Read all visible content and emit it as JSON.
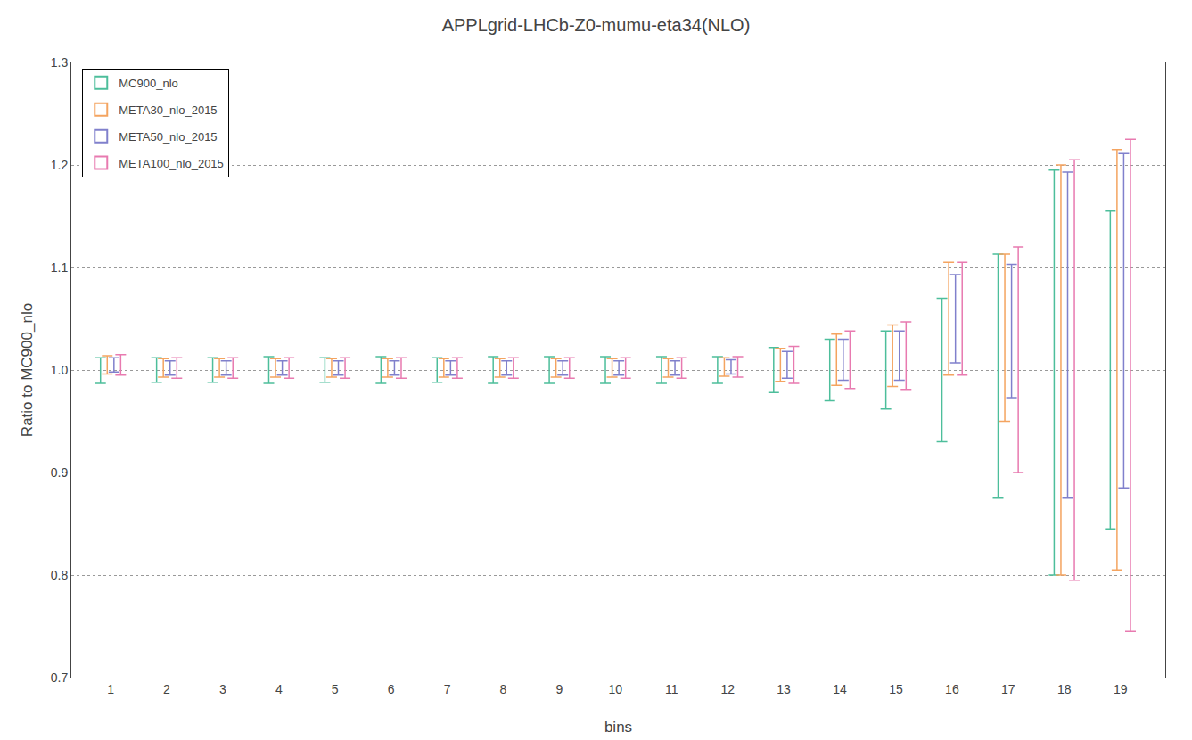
{
  "chart_data": {
    "type": "errorbar",
    "title": "APPLgrid-LHCb-Z0-mumu-eta34(NLO)",
    "xlabel": "bins",
    "ylabel": "Ratio to MC900_nlo",
    "x": [
      1,
      2,
      3,
      4,
      5,
      6,
      7,
      8,
      9,
      10,
      11,
      12,
      13,
      14,
      15,
      16,
      17,
      18,
      19
    ],
    "xlim": [
      0.3,
      19.8
    ],
    "xticks": [
      1,
      2,
      3,
      4,
      5,
      6,
      7,
      8,
      9,
      10,
      11,
      12,
      13,
      14,
      15,
      16,
      17,
      18,
      19
    ],
    "ylim": [
      0.7,
      1.3
    ],
    "yticks": [
      0.7,
      0.8,
      0.9,
      {
        "value": 1.0,
        "label": "1.0"
      },
      1.1,
      1.2,
      1.3
    ],
    "grid": true,
    "legend": "upper left",
    "series": [
      {
        "name": "MC900_nlo",
        "color": "#4dbe9b",
        "values": [
          1.0,
          1.0,
          1.0,
          1.0,
          1.0,
          1.0,
          1.0,
          1.0,
          1.0,
          1.0,
          1.0,
          1.0,
          1.0,
          1.0,
          1.0,
          1.0,
          1.0,
          1.0,
          1.0
        ],
        "err_up": [
          0.012,
          0.012,
          0.012,
          0.013,
          0.012,
          0.013,
          0.012,
          0.013,
          0.013,
          0.013,
          0.013,
          0.013,
          0.022,
          0.03,
          0.038,
          0.07,
          0.113,
          0.195,
          0.155
        ],
        "err_dn": [
          0.013,
          0.012,
          0.012,
          0.013,
          0.012,
          0.013,
          0.012,
          0.013,
          0.013,
          0.013,
          0.013,
          0.013,
          0.022,
          0.03,
          0.038,
          0.07,
          0.125,
          0.2,
          0.155
        ]
      },
      {
        "name": "META30_nlo_2015",
        "color": "#f4a460",
        "values": [
          1.005,
          1.002,
          1.002,
          1.002,
          1.002,
          1.002,
          1.002,
          1.002,
          1.002,
          1.002,
          1.002,
          1.003,
          1.005,
          1.01,
          1.014,
          1.05,
          1.065,
          1.165,
          1.195
        ],
        "err_up": [
          0.009,
          0.009,
          0.009,
          0.009,
          0.009,
          0.009,
          0.009,
          0.009,
          0.009,
          0.009,
          0.009,
          0.009,
          0.016,
          0.025,
          0.03,
          0.055,
          0.048,
          0.035,
          0.02
        ],
        "err_dn": [
          0.009,
          0.009,
          0.009,
          0.009,
          0.009,
          0.009,
          0.009,
          0.009,
          0.009,
          0.009,
          0.009,
          0.009,
          0.016,
          0.025,
          0.03,
          0.055,
          0.115,
          0.365,
          0.39
        ]
      },
      {
        "name": "META50_nlo_2015",
        "color": "#8080cc",
        "values": [
          1.005,
          1.002,
          1.002,
          1.002,
          1.002,
          1.002,
          1.002,
          1.002,
          1.002,
          1.002,
          1.002,
          1.003,
          1.005,
          1.01,
          1.014,
          1.05,
          1.065,
          1.165,
          1.195
        ],
        "err_up": [
          0.007,
          0.007,
          0.007,
          0.007,
          0.007,
          0.007,
          0.007,
          0.007,
          0.007,
          0.007,
          0.007,
          0.007,
          0.013,
          0.02,
          0.024,
          0.043,
          0.038,
          0.028,
          0.016
        ],
        "err_dn": [
          0.007,
          0.007,
          0.007,
          0.007,
          0.007,
          0.007,
          0.007,
          0.007,
          0.007,
          0.007,
          0.007,
          0.007,
          0.013,
          0.02,
          0.024,
          0.043,
          0.092,
          0.29,
          0.31
        ]
      },
      {
        "name": "META100_nlo_2015",
        "color": "#e87ab0",
        "values": [
          1.005,
          1.002,
          1.002,
          1.002,
          1.002,
          1.002,
          1.002,
          1.002,
          1.002,
          1.002,
          1.002,
          1.003,
          1.005,
          1.01,
          1.014,
          1.05,
          1.065,
          1.165,
          1.195
        ],
        "err_up": [
          0.01,
          0.01,
          0.01,
          0.01,
          0.01,
          0.01,
          0.01,
          0.01,
          0.01,
          0.01,
          0.01,
          0.01,
          0.018,
          0.028,
          0.033,
          0.055,
          0.055,
          0.04,
          0.03
        ],
        "err_dn": [
          0.01,
          0.01,
          0.01,
          0.01,
          0.01,
          0.01,
          0.01,
          0.01,
          0.01,
          0.01,
          0.01,
          0.01,
          0.018,
          0.028,
          0.033,
          0.055,
          0.165,
          0.37,
          0.45
        ]
      }
    ]
  }
}
